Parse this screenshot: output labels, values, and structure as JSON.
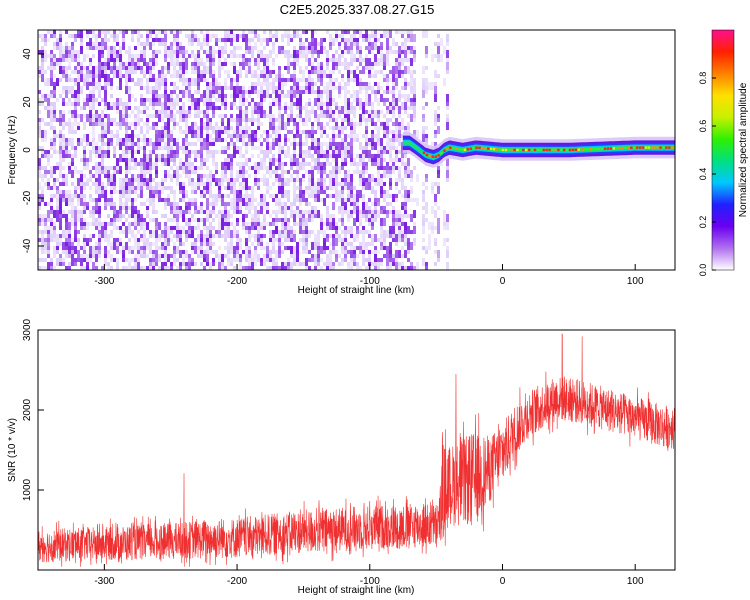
{
  "title": "C2E5.2025.337.08.27.G15",
  "colors": {
    "snr_line": "#f03030",
    "spectrogram_noise": "#7a1ee0",
    "spectrogram_noise_light": "#d8c4f8",
    "axis": "#000000",
    "colorbar_stops": [
      "#ffffff",
      "#b070f0",
      "#6a00f0",
      "#2020ff",
      "#00c8ff",
      "#00e080",
      "#30f000",
      "#c8f000",
      "#ffe000",
      "#ff8000",
      "#ff2000",
      "#ff1090"
    ]
  },
  "chart_data": [
    {
      "type": "heatmap",
      "xlabel": "Height of straight line (km)",
      "ylabel": "Frequency (Hz)",
      "xlim": [
        -350,
        130
      ],
      "ylim": [
        -50,
        50
      ],
      "x_ticks": [
        -300,
        -200,
        -100,
        0,
        100
      ],
      "x_tick_labels": [
        "-300",
        "-200",
        "-100",
        "0",
        "100"
      ],
      "y_ticks": [
        -40,
        -20,
        0,
        20,
        40
      ],
      "y_tick_labels": [
        "-40",
        "-20",
        "0",
        "20",
        "40"
      ],
      "noise_region_x": [
        -350,
        -70
      ],
      "transition_x": [
        -70,
        -42
      ],
      "signal_start_x": -75,
      "signal_trace": [
        {
          "x": -75,
          "freq": 3
        },
        {
          "x": -70,
          "freq": 3
        },
        {
          "x": -65,
          "freq": 1
        },
        {
          "x": -58,
          "freq": -2
        },
        {
          "x": -52,
          "freq": -3
        },
        {
          "x": -48,
          "freq": -2
        },
        {
          "x": -44,
          "freq": 0
        },
        {
          "x": -40,
          "freq": 1
        },
        {
          "x": -30,
          "freq": 0
        },
        {
          "x": -20,
          "freq": 1
        },
        {
          "x": 0,
          "freq": 0
        },
        {
          "x": 50,
          "freq": 0
        },
        {
          "x": 100,
          "freq": 1
        },
        {
          "x": 130,
          "freq": 1
        }
      ],
      "colorbar": {
        "label": "Normalized spectral amplitude",
        "range": [
          0,
          1
        ],
        "ticks": [
          "0.0",
          "0.2",
          "0.4",
          "0.6",
          "0.8"
        ]
      }
    },
    {
      "type": "line",
      "xlabel": "Height of straight line (km)",
      "ylabel": "SNR (10 * v/v)",
      "xlim": [
        -350,
        130
      ],
      "ylim": [
        0,
        3000
      ],
      "x_ticks": [
        -300,
        -200,
        -100,
        0,
        100
      ],
      "x_tick_labels": [
        "-300",
        "-200",
        "-100",
        "0",
        "100"
      ],
      "y_ticks": [
        1000,
        2000,
        3000
      ],
      "y_tick_labels": [
        "1000",
        "2000",
        "3000"
      ],
      "series": [
        {
          "color": "#f03030",
          "envelope": [
            {
              "x": -350,
              "mean": 300,
              "spread": 250
            },
            {
              "x": -300,
              "mean": 330,
              "spread": 250
            },
            {
              "x": -250,
              "mean": 360,
              "spread": 270
            },
            {
              "x": -200,
              "mean": 400,
              "spread": 300
            },
            {
              "x": -150,
              "mean": 480,
              "spread": 320
            },
            {
              "x": -100,
              "mean": 530,
              "spread": 330
            },
            {
              "x": -70,
              "mean": 550,
              "spread": 330
            },
            {
              "x": -48,
              "mean": 560,
              "spread": 330
            },
            {
              "x": -45,
              "mean": 1000,
              "spread": 700
            },
            {
              "x": -40,
              "mean": 1050,
              "spread": 600
            },
            {
              "x": -30,
              "mean": 1100,
              "spread": 650
            },
            {
              "x": -20,
              "mean": 1150,
              "spread": 700
            },
            {
              "x": -10,
              "mean": 1250,
              "spread": 500
            },
            {
              "x": 0,
              "mean": 1450,
              "spread": 450
            },
            {
              "x": 10,
              "mean": 1750,
              "spread": 400
            },
            {
              "x": 20,
              "mean": 1950,
              "spread": 350
            },
            {
              "x": 40,
              "mean": 2150,
              "spread": 330
            },
            {
              "x": 60,
              "mean": 2100,
              "spread": 330
            },
            {
              "x": 80,
              "mean": 2000,
              "spread": 320
            },
            {
              "x": 100,
              "mean": 1900,
              "spread": 320
            },
            {
              "x": 120,
              "mean": 1800,
              "spread": 320
            },
            {
              "x": 130,
              "mean": 1780,
              "spread": 320
            }
          ],
          "peaks": [
            {
              "x": -240,
              "y": 1210
            },
            {
              "x": 45,
              "y": 2950
            },
            {
              "x": 60,
              "y": 2920
            },
            {
              "x": -35,
              "y": 2450
            }
          ]
        }
      ]
    }
  ]
}
